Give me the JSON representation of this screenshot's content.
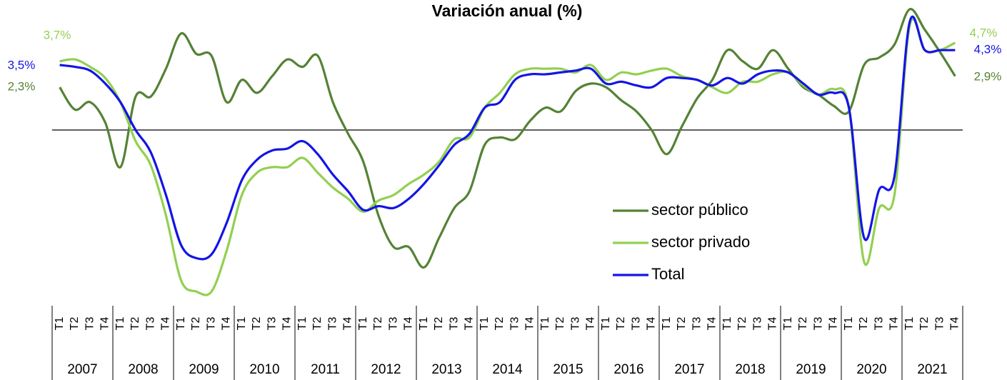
{
  "chart_data": {
    "type": "line",
    "title": "Variación anual (%)",
    "categories": [
      "T1",
      "T2",
      "T3",
      "T4",
      "T1",
      "T2",
      "T3",
      "T4",
      "T1",
      "T2",
      "T3",
      "T4",
      "T1",
      "T2",
      "T3",
      "T4",
      "T1",
      "T2",
      "T3",
      "T4",
      "T1",
      "T2",
      "T3",
      "T4",
      "T1",
      "T2",
      "T3",
      "T4",
      "T1",
      "T2",
      "T3",
      "T4",
      "T1",
      "T2",
      "T3",
      "T4",
      "T1",
      "T2",
      "T3",
      "T4",
      "T1",
      "T2",
      "T3",
      "T4",
      "T1",
      "T2",
      "T3",
      "T4",
      "T1",
      "T2",
      "T3",
      "T4",
      "T1",
      "T2",
      "T3",
      "T4",
      "T1",
      "T2",
      "T3",
      "T4"
    ],
    "years": [
      "2007",
      "2008",
      "2009",
      "2010",
      "2011",
      "2012",
      "2013",
      "2014",
      "2015",
      "2016",
      "2017",
      "2018",
      "2019",
      "2020",
      "2021"
    ],
    "ylim": [
      -9,
      7
    ],
    "series": [
      {
        "name": "sector público",
        "color": "#548235",
        "values": [
          2.3,
          1.1,
          1.5,
          0.4,
          -2.0,
          1.8,
          1.8,
          3.3,
          5.2,
          4.1,
          4.0,
          1.5,
          2.7,
          2.0,
          2.9,
          3.8,
          3.4,
          4.0,
          1.5,
          -0.2,
          -1.7,
          -4.6,
          -6.3,
          -6.3,
          -7.4,
          -5.8,
          -4.2,
          -3.3,
          -0.8,
          -0.4,
          -0.5,
          0.5,
          1.2,
          1.0,
          2.1,
          2.5,
          2.3,
          1.6,
          1.0,
          0,
          -1.3,
          0.2,
          1.7,
          2.7,
          4.3,
          3.7,
          3.3,
          4.3,
          3.3,
          2.3,
          1.9,
          1.3,
          1.0,
          3.5,
          3.9,
          4.6,
          6.5,
          5.4,
          4.2,
          2.9
        ],
        "value_labels": [
          "2,3%",
          null,
          null,
          null,
          null,
          null,
          null,
          null,
          null,
          null,
          null,
          null,
          null,
          null,
          null,
          null,
          null,
          null,
          null,
          null,
          null,
          null,
          null,
          null,
          null,
          null,
          null,
          null,
          null,
          null,
          null,
          null,
          null,
          null,
          null,
          null,
          null,
          null,
          null,
          null,
          null,
          null,
          null,
          null,
          null,
          null,
          null,
          null,
          null,
          null,
          null,
          null,
          null,
          null,
          null,
          null,
          null,
          null,
          null,
          "2,9%"
        ]
      },
      {
        "name": "sector privado",
        "color": "#92d050",
        "values": [
          3.7,
          3.8,
          3.4,
          2.8,
          1.5,
          -0.6,
          -1.9,
          -4.6,
          -8.1,
          -8.7,
          -8.7,
          -6.5,
          -3.5,
          -2.3,
          -2.0,
          -2.0,
          -1.5,
          -2.3,
          -3.1,
          -3.7,
          -4.4,
          -3.8,
          -3.5,
          -2.9,
          -2.4,
          -1.7,
          -0.5,
          -0.4,
          1.2,
          2.0,
          3.0,
          3.3,
          3.3,
          3.3,
          3.1,
          3.5,
          2.7,
          3.1,
          3.0,
          3.2,
          3.3,
          2.9,
          2.7,
          2.3,
          2.0,
          2.6,
          2.6,
          3.0,
          3.1,
          2.4,
          1.9,
          2.2,
          1.2,
          -7.1,
          -4.2,
          -3.5,
          5.6,
          4.3,
          4.3,
          4.7
        ],
        "value_labels": [
          "3,7%",
          null,
          null,
          null,
          null,
          null,
          null,
          null,
          null,
          null,
          null,
          null,
          null,
          null,
          null,
          null,
          null,
          null,
          null,
          null,
          null,
          null,
          null,
          null,
          null,
          null,
          null,
          null,
          null,
          null,
          null,
          null,
          null,
          null,
          null,
          null,
          null,
          null,
          null,
          null,
          null,
          null,
          null,
          null,
          null,
          null,
          null,
          null,
          null,
          null,
          null,
          null,
          null,
          null,
          null,
          null,
          null,
          null,
          null,
          "4,7%"
        ]
      },
      {
        "name": "Total",
        "color": "#1414e6",
        "values": [
          3.5,
          3.4,
          3.2,
          2.5,
          1.5,
          0,
          -1.2,
          -3.5,
          -6.2,
          -6.9,
          -6.7,
          -5.0,
          -2.7,
          -1.6,
          -1.1,
          -1.0,
          -0.6,
          -1.3,
          -2.4,
          -3.3,
          -4.3,
          -4.1,
          -4.2,
          -3.7,
          -2.9,
          -1.9,
          -0.8,
          -0.2,
          1.2,
          1.5,
          2.7,
          3.0,
          3.0,
          3.1,
          3.2,
          3.3,
          2.5,
          2.6,
          2.4,
          2.3,
          2.8,
          2.8,
          2.7,
          2.4,
          2.8,
          2.5,
          3.0,
          3.2,
          3.1,
          2.5,
          1.9,
          2.0,
          1.2,
          -5.8,
          -3.2,
          -2.5,
          5.8,
          4.3,
          4.3,
          4.3
        ],
        "value_labels": [
          "3,5%",
          null,
          null,
          null,
          null,
          null,
          null,
          null,
          null,
          null,
          null,
          null,
          null,
          null,
          null,
          null,
          null,
          null,
          null,
          null,
          null,
          null,
          null,
          null,
          null,
          null,
          null,
          null,
          null,
          null,
          null,
          null,
          null,
          null,
          null,
          null,
          null,
          null,
          null,
          null,
          null,
          null,
          null,
          null,
          null,
          null,
          null,
          null,
          null,
          null,
          null,
          null,
          null,
          null,
          null,
          null,
          null,
          null,
          null,
          "4,3%"
        ]
      }
    ]
  }
}
